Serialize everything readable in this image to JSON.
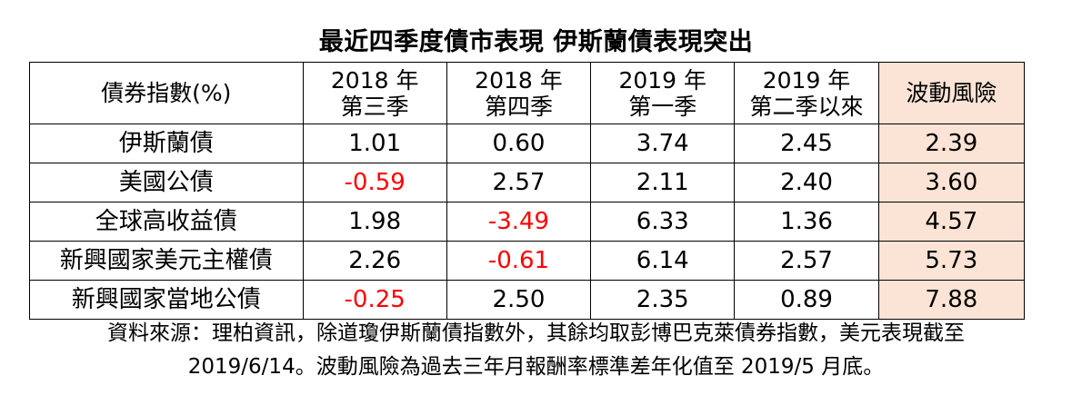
{
  "title": "最近四季度債市表現  伊斯蘭債表現突出",
  "table": {
    "headers": {
      "name": "債券指數(%)",
      "q1": {
        "line1": "2018 年",
        "line2": "第三季"
      },
      "q2": {
        "line1": "2018 年",
        "line2": "第四季"
      },
      "q3": {
        "line1": "2019 年",
        "line2": "第一季"
      },
      "q4": {
        "line1": "2019 年",
        "line2": "第二季以來"
      },
      "risk": "波動風險"
    },
    "rows": [
      {
        "name": "伊斯蘭債",
        "q1": "1.01",
        "q2": "0.60",
        "q3": "3.74",
        "q4": "2.45",
        "risk": "2.39"
      },
      {
        "name": "美國公債",
        "q1": "-0.59",
        "q2": "2.57",
        "q3": "2.11",
        "q4": "2.40",
        "risk": "3.60"
      },
      {
        "name": "全球高收益債",
        "q1": "1.98",
        "q2": "-3.49",
        "q3": "6.33",
        "q4": "1.36",
        "risk": "4.57"
      },
      {
        "name": "新興國家美元主權債",
        "q1": "2.26",
        "q2": "-0.61",
        "q3": "6.14",
        "q4": "2.57",
        "risk": "5.73"
      },
      {
        "name": "新興國家當地公債",
        "q1": "-0.25",
        "q2": "2.50",
        "q3": "2.35",
        "q4": "0.89",
        "risk": "7.88"
      }
    ]
  },
  "note": {
    "line1": "資料來源：理柏資訊，除道瓊伊斯蘭債指數外，其餘均取彭博巴克萊債券指數，美元表現截至",
    "line2": "2019/6/14。波動風險為過去三年月報酬率標準差年化值至 2019/5 月底。"
  },
  "colors": {
    "negative": "#ff0000",
    "risk_column_bg": "#fbe4d5",
    "border": "#000000"
  }
}
